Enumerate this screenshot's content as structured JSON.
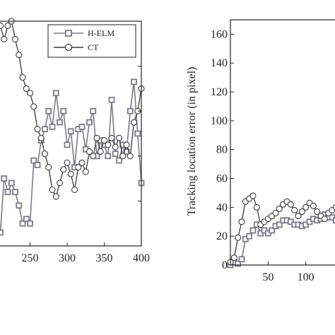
{
  "chart_data": [
    {
      "type": "line",
      "xlim": [
        200,
        400
      ],
      "ylim": [
        0,
        100
      ],
      "xticks": [
        "250",
        "300",
        "350",
        "400"
      ],
      "legend": {
        "position": "top-right",
        "entries": [
          "H-ELM",
          "CT"
        ]
      },
      "series": [
        {
          "name": "H-ELM",
          "color": "#7d7a86",
          "marker": "square",
          "x": [
            196,
            200,
            205,
            210,
            215,
            220,
            225,
            230,
            235,
            240,
            245,
            250,
            255,
            260,
            265,
            270,
            275,
            280,
            285,
            290,
            295,
            300,
            305,
            310,
            315,
            320,
            325,
            330,
            335,
            340,
            345,
            350,
            355,
            360,
            365,
            370,
            375,
            380,
            385,
            390,
            395,
            400
          ],
          "y": [
            25,
            16,
            10,
            6,
            30,
            24,
            28,
            24,
            18,
            10,
            12,
            10,
            38,
            36,
            47,
            52,
            60,
            53,
            68,
            55,
            60,
            45,
            51,
            35,
            52,
            53,
            43,
            55,
            60,
            40,
            47,
            45,
            40,
            65,
            41,
            38,
            45,
            42,
            60,
            73,
            50,
            28
          ]
        },
        {
          "name": "CT",
          "color": "#3a3a3a",
          "marker": "circle",
          "x": [
            196,
            200,
            205,
            210,
            215,
            220,
            225,
            230,
            235,
            240,
            245,
            250,
            255,
            260,
            265,
            270,
            275,
            280,
            285,
            290,
            295,
            300,
            305,
            310,
            315,
            320,
            325,
            330,
            335,
            340,
            345,
            350,
            355,
            360,
            365,
            370,
            375,
            380,
            385,
            390,
            395,
            400
          ],
          "y": [
            88,
            92,
            95,
            98,
            92,
            98,
            100,
            92,
            85,
            75,
            70,
            68,
            62,
            52,
            48,
            41,
            35,
            25,
            22,
            28,
            34,
            37,
            32,
            25,
            35,
            37,
            33,
            42,
            40,
            48,
            42,
            47,
            45,
            48,
            44,
            48,
            40,
            45,
            40,
            55,
            60,
            70
          ]
        }
      ]
    },
    {
      "type": "line",
      "ylabel": "Tracking location error (in pixel)",
      "xlim": [
        0,
        150
      ],
      "ylim": [
        0,
        170
      ],
      "xticks": [
        "50",
        "100"
      ],
      "yticks": [
        "0",
        "20",
        "40",
        "60",
        "80",
        "100",
        "120",
        "140",
        "160"
      ],
      "series": [
        {
          "name": "H-ELM",
          "color": "#7d7a86",
          "marker": "square",
          "x": [
            0,
            5,
            10,
            15,
            20,
            25,
            30,
            35,
            40,
            45,
            50,
            55,
            60,
            65,
            70,
            75,
            80,
            85,
            90,
            95,
            100,
            105,
            110,
            115,
            120,
            125,
            130,
            135,
            140,
            145,
            150
          ],
          "y": [
            0,
            2,
            1,
            4,
            18,
            20,
            24,
            28,
            22,
            24,
            22,
            24,
            27,
            28,
            31,
            31,
            30,
            28,
            28,
            27,
            28,
            30,
            32,
            31,
            32,
            35,
            33,
            33,
            31,
            33,
            37
          ]
        },
        {
          "name": "CT",
          "color": "#3a3a3a",
          "marker": "circle",
          "x": [
            0,
            5,
            10,
            15,
            20,
            25,
            30,
            35,
            40,
            45,
            50,
            55,
            60,
            65,
            70,
            75,
            80,
            85,
            90,
            95,
            100,
            105,
            110,
            115,
            120,
            125,
            130,
            135,
            140,
            145,
            150
          ],
          "y": [
            2,
            5,
            19,
            30,
            44,
            46,
            48,
            40,
            28,
            30,
            32,
            34,
            36,
            39,
            42,
            44,
            42,
            38,
            34,
            37,
            40,
            43,
            41,
            37,
            34,
            32,
            36,
            38,
            40,
            36,
            40
          ]
        }
      ]
    }
  ]
}
